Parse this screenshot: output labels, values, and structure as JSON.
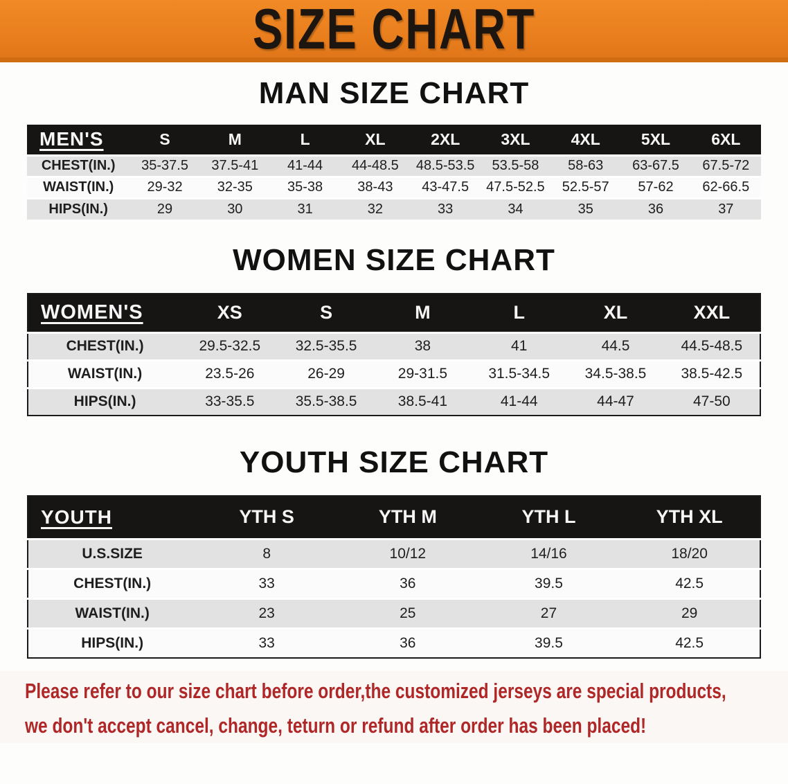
{
  "banner": {
    "title": "SIZE CHART"
  },
  "colors": {
    "banner_orange": "#e87d1c",
    "table_header_black": "#171513",
    "row_stripe_gray": "#e2e2e2",
    "note_red": "#b02728"
  },
  "chart_data": [
    {
      "type": "table",
      "title": "MAN SIZE CHART",
      "columns": [
        "MEN'S",
        "S",
        "M",
        "L",
        "XL",
        "2XL",
        "3XL",
        "4XL",
        "5XL",
        "6XL"
      ],
      "rows": [
        [
          "CHEST(IN.)",
          "35-37.5",
          "37.5-41",
          "41-44",
          "44-48.5",
          "48.5-53.5",
          "53.5-58",
          "58-63",
          "63-67.5",
          "67.5-72"
        ],
        [
          "WAIST(IN.)",
          "29-32",
          "32-35",
          "35-38",
          "38-43",
          "43-47.5",
          "47.5-52.5",
          "52.5-57",
          "57-62",
          "62-66.5"
        ],
        [
          "HIPS(IN.)",
          "29",
          "30",
          "31",
          "32",
          "33",
          "34",
          "35",
          "36",
          "37"
        ]
      ]
    },
    {
      "type": "table",
      "title": "WOMEN SIZE CHART",
      "columns": [
        "WOMEN'S",
        "XS",
        "S",
        "M",
        "L",
        "XL",
        "XXL"
      ],
      "rows": [
        [
          "CHEST(IN.)",
          "29.5-32.5",
          "32.5-35.5",
          "38",
          "41",
          "44.5",
          "44.5-48.5"
        ],
        [
          "WAIST(IN.)",
          "23.5-26",
          "26-29",
          "29-31.5",
          "31.5-34.5",
          "34.5-38.5",
          "38.5-42.5"
        ],
        [
          "HIPS(IN.)",
          "33-35.5",
          "35.5-38.5",
          "38.5-41",
          "41-44",
          "44-47",
          "47-50"
        ]
      ]
    },
    {
      "type": "table",
      "title": "YOUTH SIZE CHART",
      "columns": [
        "YOUTH",
        "YTH S",
        "YTH M",
        "YTH L",
        "YTH XL"
      ],
      "rows": [
        [
          "U.S.SIZE",
          "8",
          "10/12",
          "14/16",
          "18/20"
        ],
        [
          "CHEST(IN.)",
          "33",
          "36",
          "39.5",
          "42.5"
        ],
        [
          "WAIST(IN.)",
          "23",
          "25",
          "27",
          "29"
        ],
        [
          "HIPS(IN.)",
          "33",
          "36",
          "39.5",
          "42.5"
        ]
      ]
    }
  ],
  "footer": {
    "line1": "Please refer to our size chart before order,the customized jerseys are special products,",
    "line2": "we don't accept cancel, change, teturn or refund after order has been placed!"
  }
}
